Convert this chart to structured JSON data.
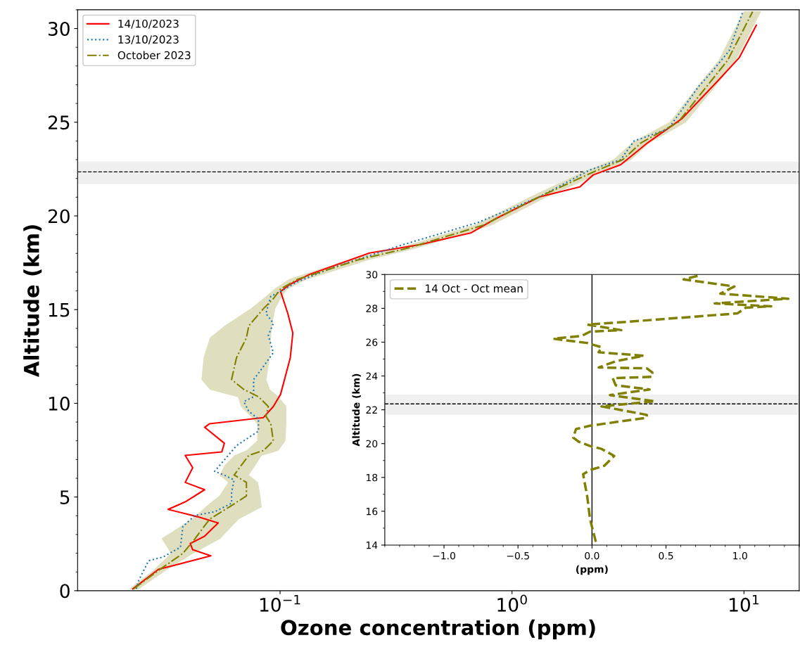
{
  "chart_data": [
    {
      "type": "line",
      "orientation": "horizontal",
      "xlabel": "Ozone concentration (ppm)",
      "ylabel": "Altitude (km)",
      "log": "x",
      "xlim": [
        0.0134,
        17.3
      ],
      "ylim": [
        0,
        31
      ],
      "xticks": [
        {
          "value": 0.1,
          "label": "10$^{−1}$"
        },
        {
          "value": 1,
          "label": "10$^{0}$"
        },
        {
          "value": 10,
          "label": "10$^{1}$"
        }
      ],
      "yticks": [
        0,
        5,
        10,
        15,
        20,
        25,
        30
      ],
      "grid": false,
      "legend": "top left",
      "series": [
        {
          "name": "14/10/2023",
          "color": "#ff0000",
          "line_style": "solid",
          "values": [
            0.0232,
            0.0299,
            0.0503,
            0.042,
            0.041,
            0.0473,
            0.0541,
            0.044,
            0.0329,
            0.039,
            0.0473,
            0.039,
            0.042,
            0.039,
            0.0561,
            0.0575,
            0.0473,
            0.0497,
            0.0848,
            0.0935,
            0.1005,
            0.1107,
            0.1135,
            0.108,
            0.1005,
            0.1107,
            0.134,
            0.243,
            0.402,
            0.667,
            0.844,
            1.31,
            1.96,
            2.24,
            2.94,
            3.85,
            5.39,
            7.8,
            9.55,
            11.3
          ],
          "x": [
            0.1,
            1.14,
            1.86,
            2.19,
            2.52,
            2.91,
            3.62,
            3.95,
            4.34,
            4.74,
            5.39,
            5.78,
            6.56,
            7.22,
            7.41,
            7.87,
            8.72,
            8.91,
            9.24,
            9.83,
            10.48,
            12.44,
            13.75,
            14.79,
            15.97,
            16.36,
            16.88,
            18.02,
            18.47,
            19.1,
            19.83,
            21.01,
            21.55,
            22.19,
            22.73,
            23.91,
            25.18,
            27.27,
            28.45,
            30.17
          ]
        },
        {
          "name": "13/10/2023",
          "color": "#1f77b4",
          "line_style": "dotted",
          "values": [
            0.024,
            0.0246,
            0.0271,
            0.0313,
            0.0372,
            0.0381,
            0.043,
            0.0522,
            0.0618,
            0.0618,
            0.0634,
            0.0575,
            0.0522,
            0.0649,
            0.0807,
            0.0807,
            0.0733,
            0.0698,
            0.0769,
            0.0769,
            0.0828,
            0.0935,
            0.089,
            0.0935,
            0.0869,
            0.0912,
            0.1005,
            0.119,
            0.173,
            0.34,
            0.713,
            1.31,
            2.17,
            2.94,
            3.36,
            4.71,
            6.38,
            7.3,
            8.63,
            9.88
          ],
          "x": [
            0.1,
            0.56,
            1.6,
            1.8,
            2.32,
            3.43,
            4.02,
            4.21,
            4.67,
            5.26,
            5.91,
            6.17,
            6.37,
            7.74,
            8.52,
            9.17,
            9.57,
            10.09,
            10.35,
            11.27,
            11.79,
            12.7,
            13.62,
            14.27,
            14.79,
            15.71,
            15.97,
            16.49,
            17.29,
            18.47,
            19.65,
            21.01,
            22.46,
            23.0,
            24.0,
            24.64,
            26.91,
            27.72,
            28.81,
            30.9
          ]
        },
        {
          "name": "October 2023",
          "color": "#808000",
          "line_style": "dashdot",
          "values": [
            0.0234,
            0.0299,
            0.0381,
            0.043,
            0.0497,
            0.0604,
            0.0716,
            0.0716,
            0.0634,
            0.0681,
            0.0733,
            0.0848,
            0.0935,
            0.0912,
            0.0869,
            0.089,
            0.0807,
            0.0698,
            0.0618,
            0.0649,
            0.0716,
            0.0733,
            0.0848,
            0.0935,
            0.1005,
            0.119,
            0.218,
            0.36,
            0.75,
            1.3,
            2.2,
            3.0,
            3.6,
            5.2,
            7.0,
            8.5,
            10.9
          ],
          "x": [
            0.1,
            1.08,
            1.99,
            2.78,
            3.82,
            4.47,
            5.06,
            5.78,
            6.17,
            6.7,
            7.22,
            7.48,
            8.0,
            8.91,
            9.31,
            9.83,
            10.35,
            10.74,
            11.27,
            12.44,
            13.49,
            14.14,
            15.05,
            15.58,
            16.1,
            16.62,
            17.66,
            18.3,
            19.5,
            21.0,
            22.3,
            23.0,
            23.9,
            25.0,
            27.0,
            28.3,
            30.9
          ],
          "lower": [
            0.0225,
            0.0285,
            0.034,
            0.031,
            0.042,
            0.048,
            0.055,
            0.06,
            0.055,
            0.058,
            0.064,
            0.072,
            0.08,
            0.08,
            0.075,
            0.068,
            0.066,
            0.05,
            0.046,
            0.047,
            0.05,
            0.058,
            0.075,
            0.085,
            0.095,
            0.11,
            0.2,
            0.33,
            0.69,
            1.2,
            2.0,
            2.75,
            3.3,
            4.8,
            6.4,
            7.8,
            10.0
          ],
          "upper": [
            0.0245,
            0.032,
            0.042,
            0.055,
            0.066,
            0.083,
            0.082,
            0.08,
            0.073,
            0.078,
            0.083,
            0.098,
            0.105,
            0.106,
            0.106,
            0.106,
            0.098,
            0.09,
            0.087,
            0.09,
            0.091,
            0.092,
            0.095,
            0.1,
            0.107,
            0.13,
            0.24,
            0.39,
            0.81,
            1.4,
            2.4,
            3.25,
            3.9,
            5.6,
            7.6,
            9.2,
            11.8
          ]
        }
      ],
      "ref_lines": [
        {
          "axis": "y",
          "value": 22.35,
          "color": "#000000",
          "line_style": "dashed"
        }
      ],
      "bands": [
        {
          "axis": "y",
          "from": 21.7,
          "to": 22.9,
          "color": "#f0f0f0"
        }
      ]
    },
    {
      "type": "line",
      "orientation": "horizontal",
      "xlabel": "(ppm)",
      "ylabel": "Altitude (km)",
      "xlim": [
        -1.4,
        1.4
      ],
      "ylim": [
        14,
        30
      ],
      "xticks": [
        {
          "value": -1.0,
          "label": "−1.0"
        },
        {
          "value": -0.5,
          "label": "−0.5"
        },
        {
          "value": 0.0,
          "label": "0.0"
        },
        {
          "value": 0.5,
          "label": "0.5"
        },
        {
          "value": 1.0,
          "label": "1.0"
        }
      ],
      "yticks": [
        14,
        16,
        18,
        20,
        22,
        24,
        26,
        28,
        30
      ],
      "grid": false,
      "legend": "top left",
      "series": [
        {
          "name": "14 Oct - Oct mean",
          "color": "#808000",
          "line_style": "dashed",
          "values": [
            0.026,
            -0.013,
            -0.032,
            -0.06,
            -0.013,
            0.083,
            0.15,
            0.064,
            -0.013,
            -0.089,
            -0.127,
            -0.108,
            -0.013,
            0.37,
            0.37,
            0.064,
            0.427,
            0.121,
            0.389,
            0.16,
            0.14,
            0.408,
            0.408,
            0.37,
            0.045,
            0.16,
            0.35,
            0.045,
            0.064,
            -0.032,
            -0.261,
            -0.07,
            -0.013,
            0.198,
            -0.032,
            0.236,
            0.982,
            1.039,
            1.211,
            0.829,
            1.326,
            0.867,
            0.962,
            0.695,
            0.619,
            0.733
          ],
          "x": [
            14.19,
            15.52,
            16.86,
            18.19,
            18.44,
            18.69,
            19.27,
            19.69,
            19.86,
            20.11,
            20.36,
            20.86,
            21.06,
            21.53,
            21.7,
            22.2,
            22.5,
            22.87,
            23.2,
            23.45,
            23.87,
            23.95,
            24.2,
            24.45,
            24.5,
            24.87,
            25.2,
            25.4,
            25.7,
            25.95,
            26.2,
            26.37,
            26.62,
            26.71,
            27.04,
            27.2,
            27.7,
            28.04,
            28.12,
            28.29,
            28.57,
            28.87,
            29.29,
            29.62,
            29.71,
            29.96
          ]
        }
      ],
      "ref_lines": [
        {
          "axis": "y",
          "value": 22.35,
          "color": "#000000",
          "line_style": "dashed"
        },
        {
          "axis": "x",
          "value": 0,
          "color": "#000000",
          "line_style": "solid"
        }
      ],
      "bands": [
        {
          "axis": "y",
          "from": 21.7,
          "to": 22.9,
          "color": "#f0f0f0"
        }
      ]
    }
  ]
}
